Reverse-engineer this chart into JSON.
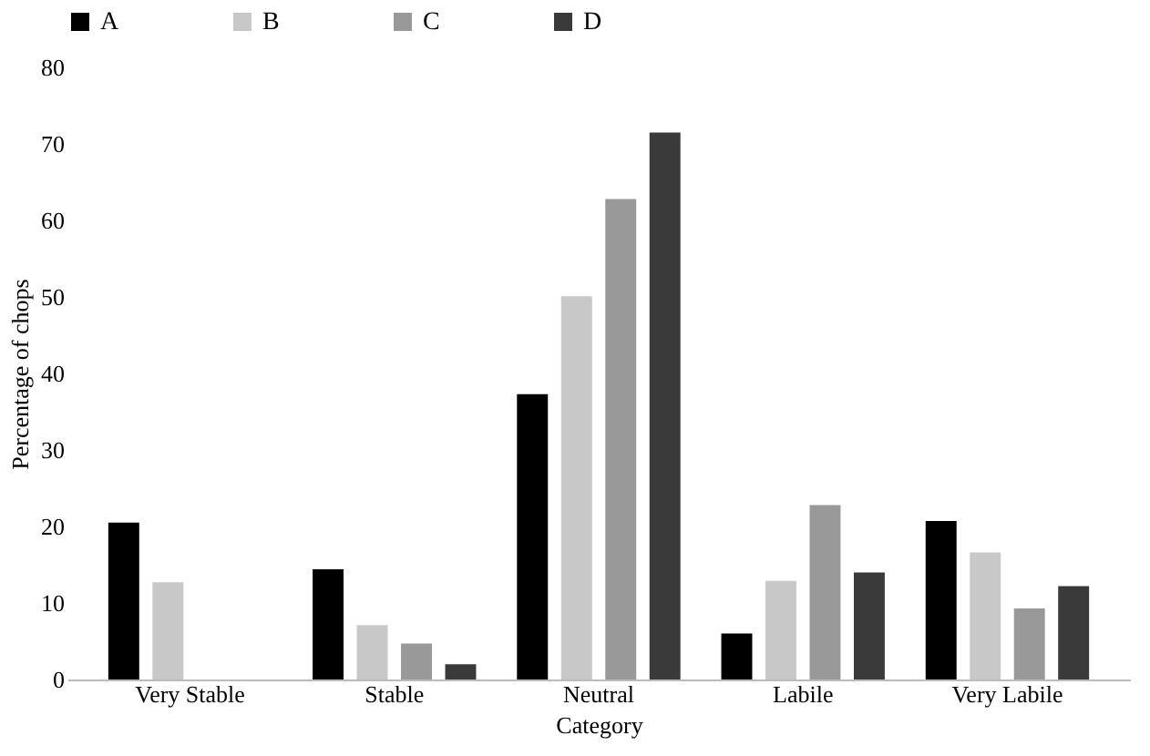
{
  "chart_data": {
    "type": "bar",
    "xlabel": "Category",
    "ylabel": "Percentage of chops",
    "categories": [
      "Very Stable",
      "Stable",
      "Neutral",
      "Labile",
      "Very Labile"
    ],
    "series": [
      {
        "name": "A",
        "color": "#000000",
        "values": [
          20.5,
          14.4,
          37.3,
          6.0,
          20.7
        ]
      },
      {
        "name": "B",
        "color": "#c8c8c8",
        "values": [
          12.7,
          7.1,
          50.1,
          12.9,
          16.6
        ]
      },
      {
        "name": "C",
        "color": "#999999",
        "values": [
          null,
          4.7,
          62.8,
          22.8,
          9.3
        ]
      },
      {
        "name": "D",
        "color": "#3a3a3a",
        "values": [
          null,
          2.0,
          71.5,
          14.0,
          12.2
        ]
      }
    ],
    "ylim": [
      0,
      80
    ],
    "yticks": [
      0,
      10,
      20,
      30,
      40,
      50,
      60,
      70,
      80
    ],
    "grid": false,
    "legend": "top"
  }
}
